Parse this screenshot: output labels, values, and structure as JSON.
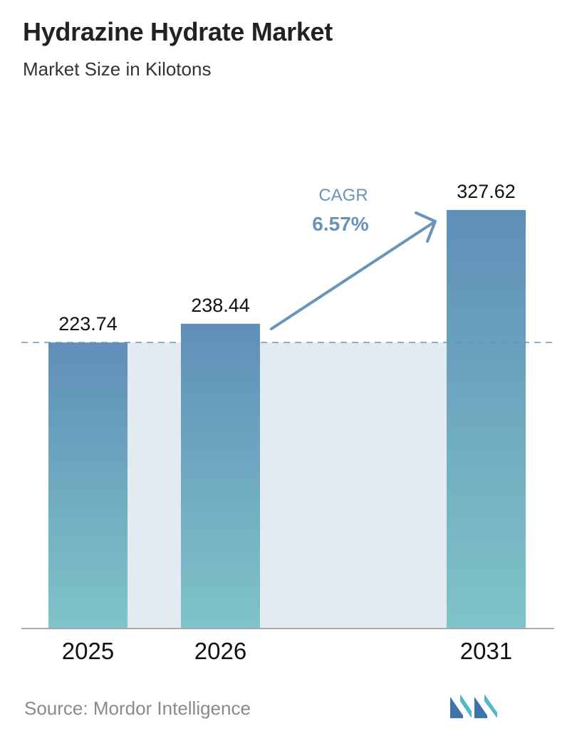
{
  "header": {
    "title": "Hydrazine Hydrate Market",
    "subtitle": "Market Size in Kilotons"
  },
  "cagr": {
    "label": "CAGR",
    "value": "6.57%"
  },
  "footer": {
    "source": "Source: Mordor Intelligence"
  },
  "colors": {
    "bar_top": "#5f8fb8",
    "bar_bottom": "#7fc4c8",
    "highlight_band": "#e3eaf2",
    "dashed_line": "#6e93b3",
    "arrow": "#6a93b8",
    "axis": "#aaaaaa",
    "logo_dark": "#3f74a8",
    "logo_light": "#55b7c8"
  },
  "logo": {
    "icon": "mordor-intelligence-logo-icon"
  },
  "chart_data": {
    "type": "bar",
    "categories": [
      "2025",
      "2026",
      "2031"
    ],
    "values": [
      223.74,
      238.44,
      327.62
    ],
    "value_labels": [
      "223.74",
      "238.44",
      "327.62"
    ],
    "title": "Hydrazine Hydrate Market",
    "subtitle": "Market Size in Kilotons",
    "xlabel": "",
    "ylabel": "",
    "ylim": [
      0,
      327.62
    ],
    "grid": false,
    "reference_line_value": 223.74,
    "annotation": {
      "text": "CAGR",
      "value": "6.57%",
      "from": "2026",
      "to": "2031"
    }
  }
}
